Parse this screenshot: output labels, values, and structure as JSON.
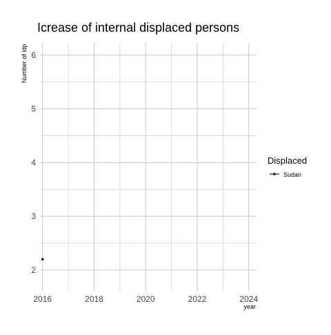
{
  "chart_data": {
    "type": "line",
    "title": "Icrease of internal displaced persons",
    "xlabel": "year",
    "ylabel": "Number of idp",
    "x_ticks": [
      2016,
      2018,
      2020,
      2022,
      2024
    ],
    "y_ticks": [
      2,
      3,
      4,
      5,
      6
    ],
    "xlim": [
      2015.9,
      2024.3
    ],
    "ylim": [
      1.6,
      6.23
    ],
    "grid": true,
    "legend": {
      "title": "Displaced",
      "position": "right"
    },
    "series": [
      {
        "name": "Sudan",
        "color": "#440154",
        "points": [
          {
            "x": 2016,
            "y": 2.2
          }
        ]
      }
    ]
  }
}
